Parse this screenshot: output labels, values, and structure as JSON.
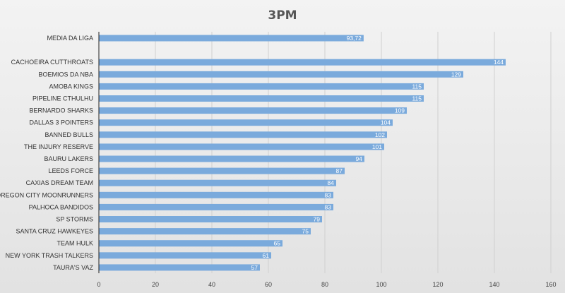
{
  "chart_data": {
    "type": "bar",
    "orientation": "horizontal",
    "title": "3PM",
    "xlabel": "",
    "ylabel": "",
    "xlim": [
      0,
      160
    ],
    "x_ticks": [
      0,
      20,
      40,
      60,
      80,
      100,
      120,
      140,
      160
    ],
    "grid": true,
    "bar_color": "#7aaadc",
    "categories": [
      "MEDIA DA LIGA",
      "",
      "CACHOEIRA CUTTHROATS",
      "BOEMIOS DA NBA",
      "AMOBA KINGS",
      "PIPELINE CTHULHU",
      "BERNARDO SHARKS",
      "DALLAS 3 POINTERS",
      "BANNED BULLS",
      "THE INJURY RESERVE",
      "BAURU LAKERS",
      "LEEDS FORCE",
      "CAXIAS DREAM TEAM",
      "OREGON CITY MOONRUNNERS",
      "PALHOCA BANDIDOS",
      "SP STORMS",
      "SANTA CRUZ HAWKEYES",
      "TEAM HULK",
      "NEW YORK TRASH TALKERS",
      "TAURA'S VAZ"
    ],
    "values": [
      93.72,
      null,
      144,
      129,
      115,
      115,
      109,
      104,
      102,
      101,
      94,
      87,
      84,
      83,
      83,
      79,
      75,
      65,
      61,
      57
    ],
    "value_labels": [
      "93,72",
      "",
      "144",
      "129",
      "115",
      "115",
      "109",
      "104",
      "102",
      "101",
      "94",
      "87",
      "84",
      "83",
      "83",
      "79",
      "75",
      "65",
      "61",
      "57"
    ]
  }
}
